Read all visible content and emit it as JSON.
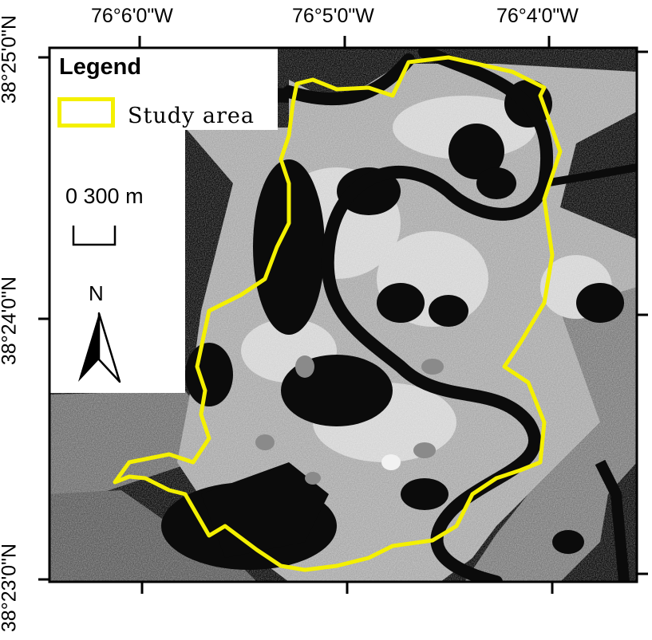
{
  "axes": {
    "top_labels": [
      "76°6'0\"W",
      "76°5'0\"W",
      "76°4'0\"W"
    ],
    "left_labels": [
      "38°25'0\"N",
      "38°24'0\"N",
      "38°23'0\"N"
    ]
  },
  "legend": {
    "title": "Legend",
    "items": [
      {
        "label": "Study area",
        "color": "#f4f000"
      }
    ]
  },
  "scale_bar": {
    "label": "0 300 m"
  },
  "north_arrow": {
    "label": "N"
  },
  "colors": {
    "boundary": "#f4f000",
    "water": "#0b0b0b",
    "land": "#b9b9b9"
  }
}
